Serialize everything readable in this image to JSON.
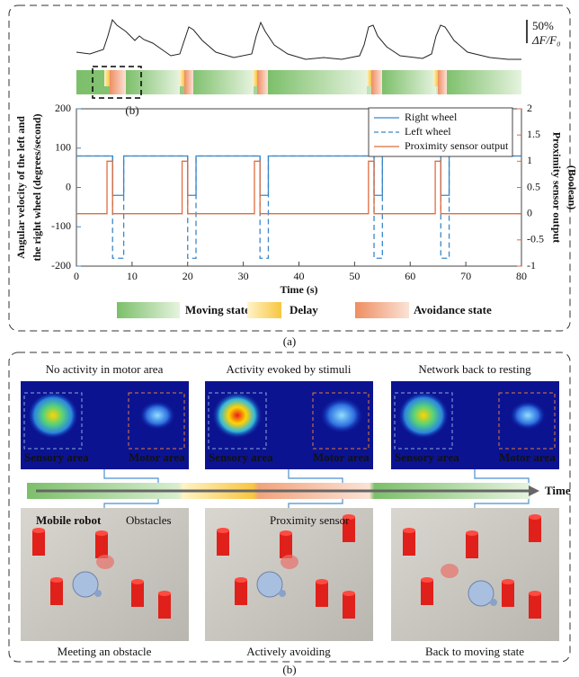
{
  "chart_data": {
    "type": "line",
    "x_label": "Time (s)",
    "y_label": [
      "Angular velocity of the left and",
      "the right wheel (degrees/second)"
    ],
    "y2_label": [
      "Proximity sensor output",
      "(Boolean)"
    ],
    "xlim": [
      0,
      80
    ],
    "xticks": [
      0,
      10,
      20,
      30,
      40,
      50,
      60,
      70,
      80
    ],
    "ylim": [
      -200,
      200
    ],
    "yticks": [
      -200,
      -100,
      0,
      100,
      200
    ],
    "y2lim": [
      -1,
      2
    ],
    "y2ticks": [
      -1,
      -0.5,
      0,
      0.5,
      1,
      1.5,
      2
    ],
    "legend_position": "upper right",
    "series": [
      {
        "name": "Right wheel",
        "color": "#3b87c7",
        "dash": false,
        "x": [
          0,
          6.5,
          6.5,
          8.5,
          8.5,
          20,
          20,
          21.5,
          21.5,
          33,
          33,
          34.5,
          34.5,
          53.5,
          53.5,
          55,
          55,
          65.5,
          65.5,
          67,
          67,
          80
        ],
        "values": [
          80,
          80,
          -20,
          -20,
          80,
          80,
          -20,
          -20,
          80,
          80,
          -20,
          -20,
          80,
          80,
          -20,
          -20,
          80,
          80,
          -20,
          -20,
          80,
          80
        ]
      },
      {
        "name": "Left wheel",
        "color": "#3b87c7",
        "dash": true,
        "x": [
          0,
          6.5,
          6.5,
          8.5,
          8.5,
          20,
          20,
          21.5,
          21.5,
          33,
          33,
          34.5,
          34.5,
          53.5,
          53.5,
          55,
          55,
          65.5,
          65.5,
          67,
          67,
          80
        ],
        "values": [
          80,
          80,
          -180,
          -180,
          80,
          80,
          -180,
          -180,
          80,
          80,
          -180,
          -180,
          80,
          80,
          -180,
          -180,
          80,
          80,
          -180,
          -180,
          80,
          80
        ]
      },
      {
        "name": "Proximity sensor output",
        "color": "#e06c3f",
        "dash": false,
        "axis": "y2",
        "x": [
          0,
          5.5,
          5.5,
          6.5,
          6.5,
          19,
          19,
          20,
          20,
          32,
          32,
          33,
          33,
          52.5,
          52.5,
          53.5,
          53.5,
          64.5,
          64.5,
          65.5,
          65.5,
          80
        ],
        "values": [
          0,
          0,
          1,
          1,
          0,
          0,
          1,
          1,
          0,
          0,
          1,
          1,
          0,
          0,
          1,
          1,
          0,
          0,
          1,
          1,
          0,
          0
        ]
      }
    ]
  },
  "panel_a": {
    "label": "(a)",
    "inset_label": "(b)",
    "scale_bar_value": "50%",
    "scale_bar_unit": "ΔF/F₀",
    "state_legend": [
      "Moving state",
      "Delay",
      "Avoidance state"
    ]
  },
  "panel_b": {
    "label": "(b)",
    "time_label": "Time",
    "frames": [
      {
        "title": "No activity in motor area",
        "sensory_label": "Sensory area",
        "motor_label": "Motor area",
        "caption": "Meeting an obstacle"
      },
      {
        "title": "Activity evoked by stimuli",
        "sensory_label": "Sensory area",
        "motor_label": "Motor area",
        "caption": "Actively avoiding"
      },
      {
        "title": "Network back to resting",
        "sensory_label": "Sensory area",
        "motor_label": "Motor area",
        "caption": "Back to moving state"
      }
    ],
    "annotations": [
      "Mobile robot",
      "Obstacles",
      "Proximity sensor"
    ]
  }
}
